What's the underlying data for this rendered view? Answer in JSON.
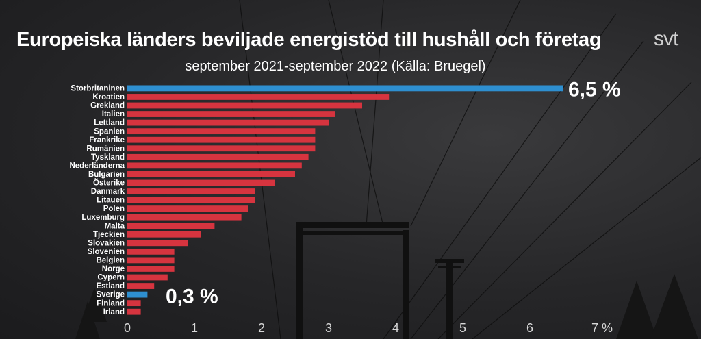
{
  "header": {
    "title": "Europeiska länders beviljade energistöd till hushåll och företag",
    "subtitle": "september 2021-september 2022 (Källa: Bruegel)",
    "logo": "svt"
  },
  "colors": {
    "bar_default": "#d6343f",
    "bar_highlight": "#2e8fd0",
    "text": "#ffffff"
  },
  "chart_data": {
    "type": "bar",
    "orientation": "horizontal",
    "title": "Europeiska länders beviljade energistöd till hushåll och företag",
    "subtitle": "september 2021-september 2022 (Källa: Bruegel)",
    "categories": [
      "Storbritaninen",
      "Kroatien",
      "Grekland",
      "Italien",
      "Lettland",
      "Spanien",
      "Frankrike",
      "Rumänien",
      "Tyskland",
      "Nederländerna",
      "Bulgarien",
      "Österike",
      "Danmark",
      "Litauen",
      "Polen",
      "Luxemburg",
      "Malta",
      "Tjeckien",
      "Slovakien",
      "Slovenien",
      "Belgien",
      "Norge",
      "Cypern",
      "Estland",
      "Sverige",
      "Finland",
      "Irland"
    ],
    "values": [
      6.5,
      3.9,
      3.5,
      3.1,
      3.0,
      2.8,
      2.8,
      2.8,
      2.7,
      2.6,
      2.5,
      2.2,
      1.9,
      1.9,
      1.8,
      1.7,
      1.3,
      1.1,
      0.9,
      0.7,
      0.7,
      0.7,
      0.6,
      0.4,
      0.3,
      0.2,
      0.2
    ],
    "highlight": [
      "Storbritaninen",
      "Sverige"
    ],
    "xlim": [
      0,
      7
    ],
    "x_ticks": [
      "0",
      "1",
      "2",
      "3",
      "4",
      "5",
      "6",
      "7 %"
    ],
    "annotations": [
      {
        "category": "Storbritaninen",
        "text": "6,5 %"
      },
      {
        "category": "Sverige",
        "text": "0,3 %"
      }
    ],
    "grid": false,
    "legend": "none"
  }
}
